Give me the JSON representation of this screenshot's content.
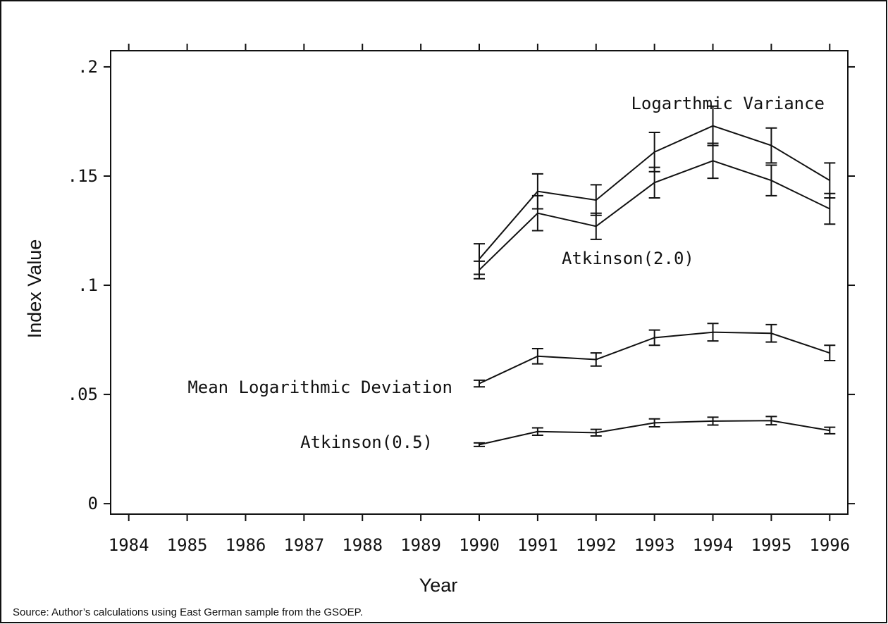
{
  "chart_data": {
    "type": "line",
    "x_label": "Year",
    "y_label": "Index Value",
    "source": "Source:  Author’s calculations using East German sample from the GSOEP.",
    "x": [
      1990,
      1991,
      1992,
      1993,
      1994,
      1995,
      1996
    ],
    "series": [
      {
        "name": "Logarthmic Variance",
        "color": "#111111",
        "values": [
          0.112,
          0.143,
          0.139,
          0.161,
          0.173,
          0.164,
          0.148
        ],
        "errors": [
          0.007,
          0.008,
          0.007,
          0.009,
          0.009,
          0.008,
          0.008
        ]
      },
      {
        "name": "Atkinson(2.0)",
        "color": "#111111",
        "values": [
          0.107,
          0.133,
          0.127,
          0.147,
          0.157,
          0.148,
          0.135
        ],
        "errors": [
          0.004,
          0.008,
          0.006,
          0.007,
          0.008,
          0.007,
          0.007
        ]
      },
      {
        "name": "Mean Logarithmic Deviation",
        "color": "#111111",
        "values": [
          0.055,
          0.0675,
          0.066,
          0.076,
          0.0785,
          0.078,
          0.069
        ],
        "errors": [
          0.0015,
          0.0035,
          0.003,
          0.0035,
          0.004,
          0.004,
          0.0035
        ]
      },
      {
        "name": "Atkinson(0.5)",
        "color": "#111111",
        "values": [
          0.027,
          0.033,
          0.0325,
          0.037,
          0.0378,
          0.038,
          0.0335
        ],
        "errors": [
          0.0008,
          0.0017,
          0.0015,
          0.0018,
          0.0018,
          0.0019,
          0.0015
        ]
      }
    ],
    "xlim": [
      1983.69,
      1996.31
    ],
    "xticks": [
      1984,
      1985,
      1986,
      1987,
      1988,
      1989,
      1990,
      1991,
      1992,
      1993,
      1994,
      1995,
      1996
    ],
    "ylim": [
      -0.0048,
      0.2074
    ],
    "yticks": [
      0,
      {
        "value": 0.05,
        "label": ".05"
      },
      {
        "value": 0.1,
        "label": ".1"
      },
      {
        "value": 0.15,
        "label": ".15"
      },
      {
        "value": 0.2,
        "label": ".2"
      }
    ],
    "grid": false
  }
}
